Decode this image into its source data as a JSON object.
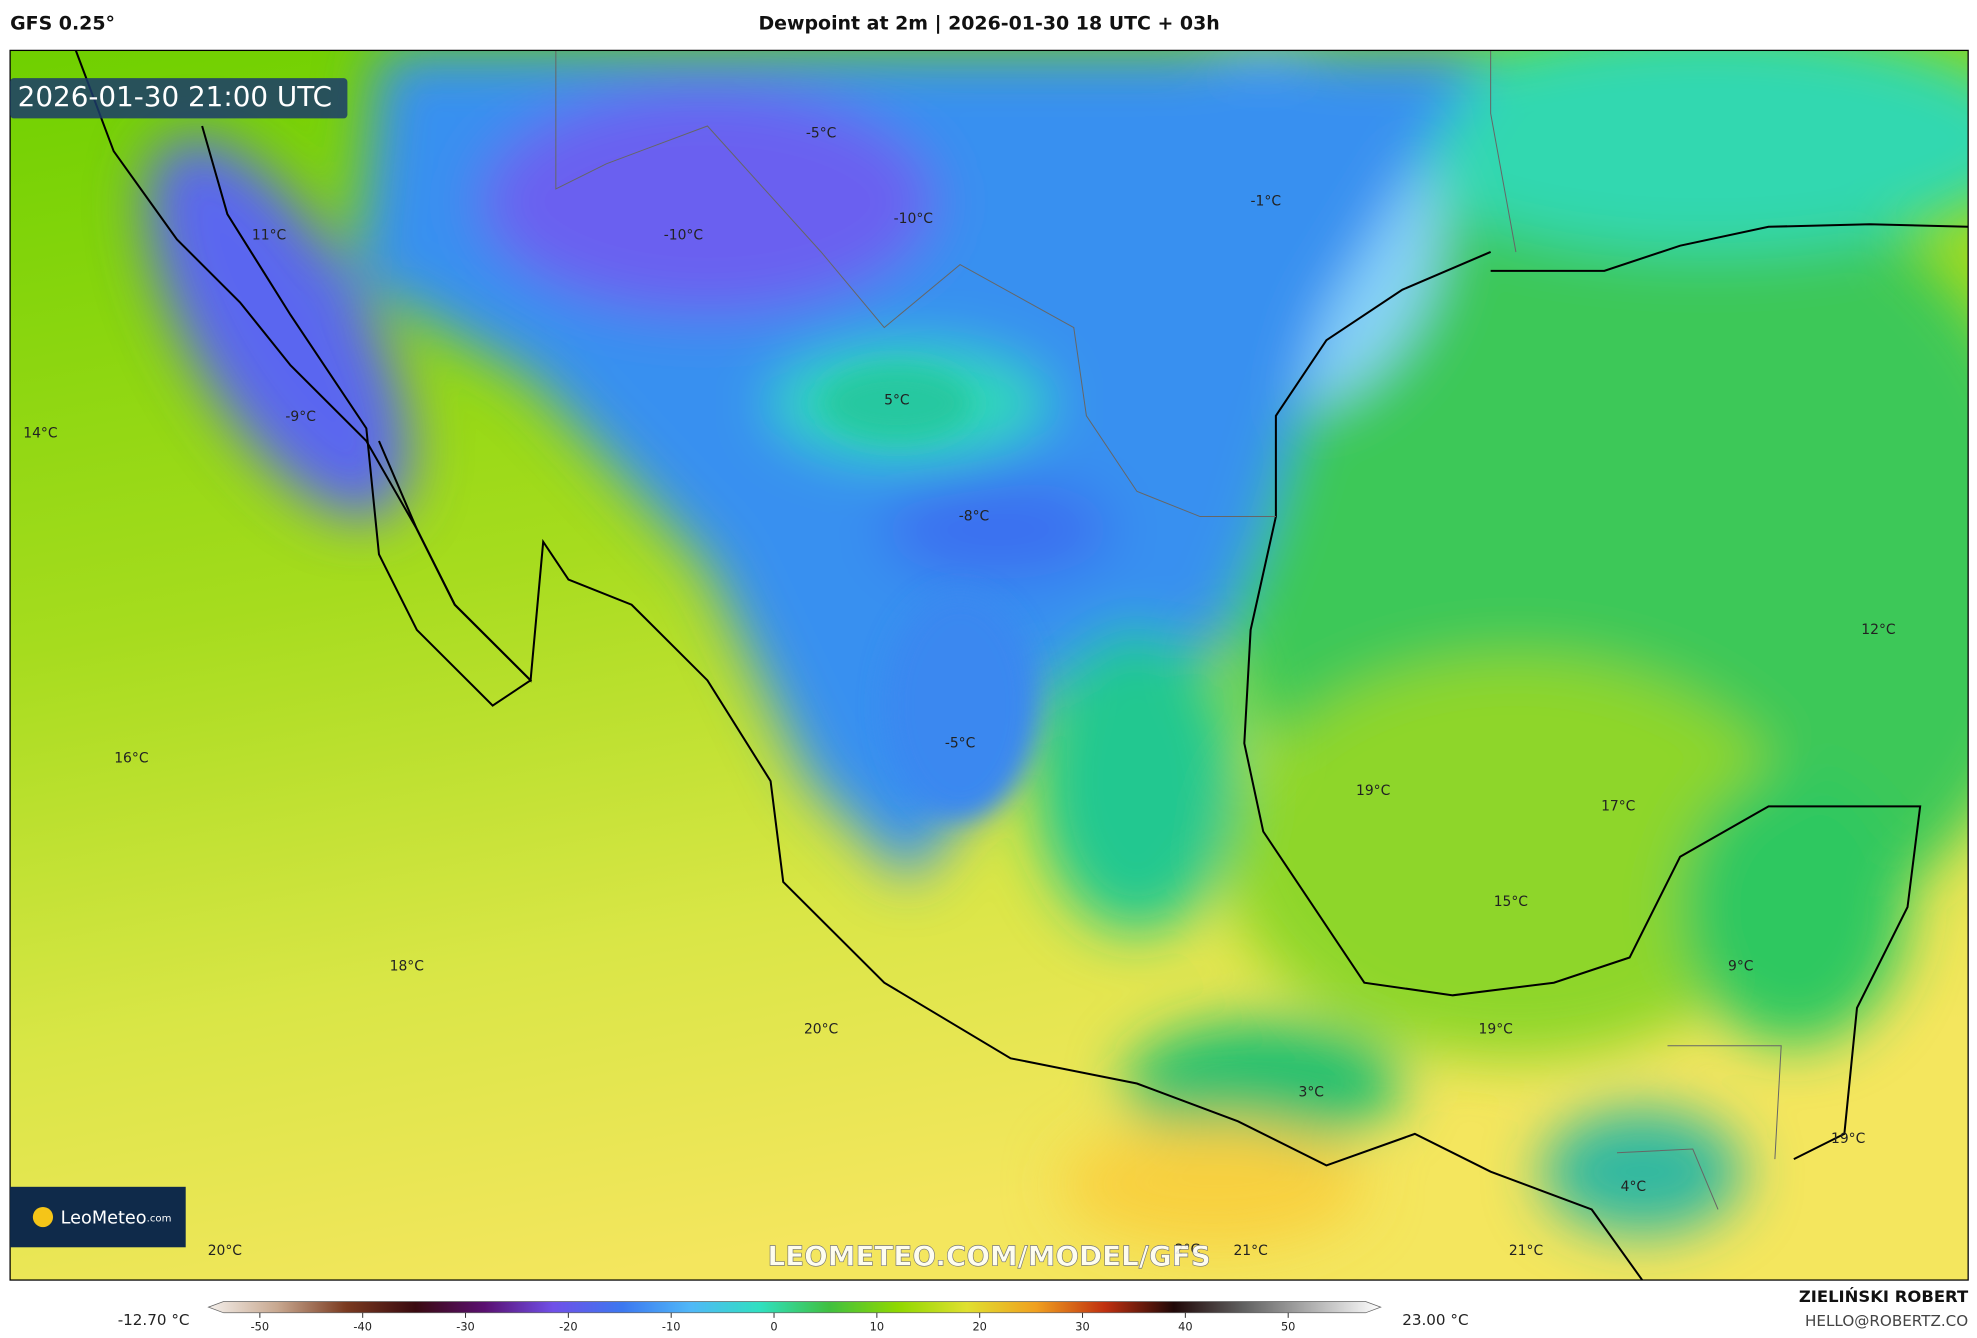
{
  "header": {
    "model": "GFS 0.25°",
    "title": "Dewpoint at 2m | 2026-01-30 18 UTC + 03h"
  },
  "map": {
    "timestamp": "2026-01-30 21:00 UTC",
    "labels": [
      "11°C",
      "-10°C",
      "-10°C",
      "-5°C",
      "-1°C",
      "5°C",
      "-9°C",
      "14°C",
      "-8°C",
      "12°C",
      "-5°C",
      "16°C",
      "19°C",
      "17°C",
      "15°C",
      "9°C",
      "18°C",
      "20°C",
      "19°C",
      "3°C",
      "19°C",
      "4°C",
      "20°C",
      "2°C",
      "21°C",
      "21°C"
    ],
    "watermark": "LEOMETEO.COM/MODEL/GFS",
    "logo": {
      "name": "LeoMeteo",
      "suffix": ".com"
    }
  },
  "colorbar": {
    "min_label": "-12.70 °C",
    "max_label": "23.00 °C",
    "xlim": [
      -55,
      59
    ],
    "xticks": [
      -50,
      -40,
      -30,
      -20,
      -10,
      0,
      10,
      20,
      30,
      40,
      50
    ]
  },
  "footer": {
    "author": "ZIELIŃSKI ROBERT",
    "contact": "HELLO@ROBERTZ.CO"
  }
}
